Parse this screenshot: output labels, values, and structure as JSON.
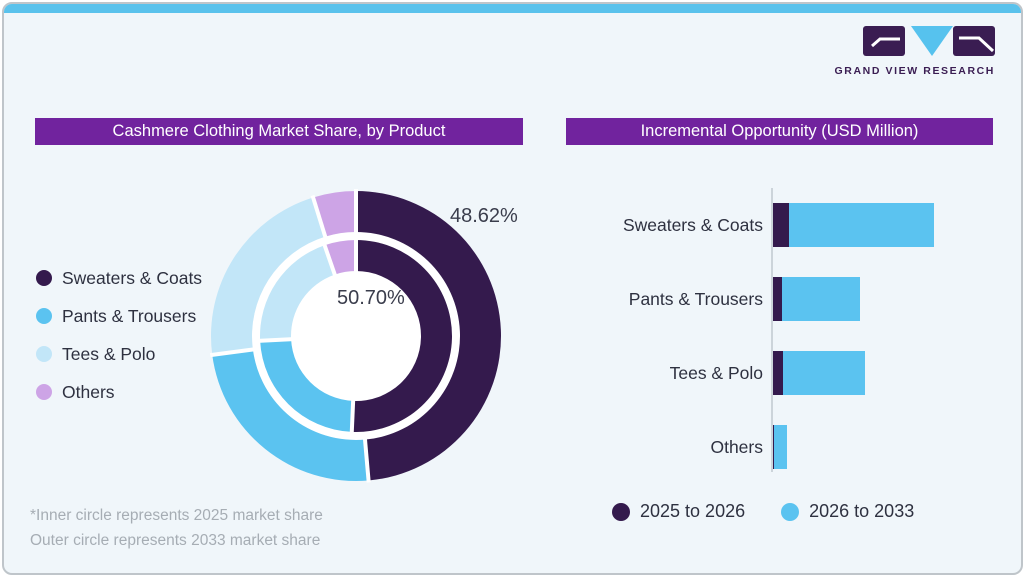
{
  "brand": {
    "name": "GRAND VIEW RESEARCH",
    "logo_dark": "#3a1d52",
    "logo_blue": "#56c2ee"
  },
  "theme": {
    "card_background": "#f0f6fa",
    "top_strip": "#5ac2ec",
    "header_background": "#71239e",
    "header_text": "#ffffff",
    "text": "#2e3140",
    "muted_text": "#a6adb4",
    "axis_line": "#ccd4da",
    "card_border": "#bfc5ca"
  },
  "chart_data": [
    {
      "type": "donut",
      "title": "Cashmere Clothing Market Share, by Product",
      "categories": [
        "Sweaters & Coats",
        "Pants & Trousers",
        "Tees & Polo",
        "Others"
      ],
      "colors": [
        "#341a4d",
        "#5bc3f0",
        "#c2e6f8",
        "#cda4e6"
      ],
      "series": [
        {
          "name": "2025 market share (inner circle)",
          "values": [
            50.7,
            23.5,
            20.5,
            5.3
          ]
        },
        {
          "name": "2033 market share (outer circle)",
          "values": [
            48.62,
            24.3,
            22.3,
            4.78
          ]
        }
      ],
      "callouts": {
        "outer": "48.62%",
        "inner": "50.70%"
      },
      "footnote": [
        "*Inner circle represents 2025 market share",
        "Outer circle represents 2033 market share"
      ],
      "legend_position": "left",
      "start_angle_deg": 0,
      "direction": "clockwise"
    },
    {
      "type": "bar",
      "orientation": "horizontal",
      "title": "Incremental Opportunity (USD Million)",
      "categories": [
        "Sweaters & Coats",
        "Pants & Trousers",
        "Tees & Polo",
        "Others"
      ],
      "series": [
        {
          "name": "2025 to 2026",
          "color": "#341a4d",
          "values": [
            16,
            9,
            10,
            1.5
          ]
        },
        {
          "name": "2026 to 2033",
          "color": "#5bc3f0",
          "values": [
            146,
            79,
            83,
            13
          ]
        }
      ],
      "value_axis_labels_shown": false,
      "legend_position": "bottom"
    }
  ]
}
